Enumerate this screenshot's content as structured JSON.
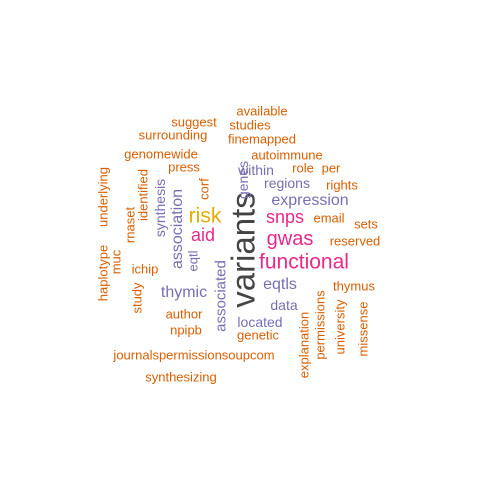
{
  "colors": {
    "orange": "#d95f02",
    "purple": "#7570b3",
    "magenta": "#e7298a",
    "gold": "#e6ab02",
    "dark": "#444444"
  },
  "words": {
    "variants": "variants",
    "functional": "functional",
    "gwas": "gwas",
    "snps": "snps",
    "risk": "risk",
    "aid": "aid",
    "expression": "expression",
    "eqtls": "eqtls",
    "thymic": "thymic",
    "association": "association",
    "associated": "associated",
    "regions": "regions",
    "within": "within",
    "genes": "genes",
    "synthesis": "synthesis",
    "located": "located",
    "data": "data",
    "eqtl": "eqtl",
    "available": "available",
    "suggest": "suggest",
    "studies": "studies",
    "surrounding": "surrounding",
    "finemapped": "finemapped",
    "genomewide": "genomewide",
    "autoimmune": "autoimmune",
    "underlying": "underlying",
    "press": "press",
    "role": "role",
    "per": "per",
    "identified": "identified",
    "corf": "corf",
    "rights": "rights",
    "rnaset": "rnaset",
    "haplotype": "haplotype",
    "email": "email",
    "sets": "sets",
    "muc": "muc",
    "reserved": "reserved",
    "ichip": "ichip",
    "study": "study",
    "thymus": "thymus",
    "author": "author",
    "npipb": "npipb",
    "genetic": "genetic",
    "explanation": "explanation",
    "permissions": "permissions",
    "university": "university",
    "missense": "missense",
    "journalspermissionsoupcom": "journalspermissionsoupcom",
    "synthesizing": "synthesizing"
  }
}
